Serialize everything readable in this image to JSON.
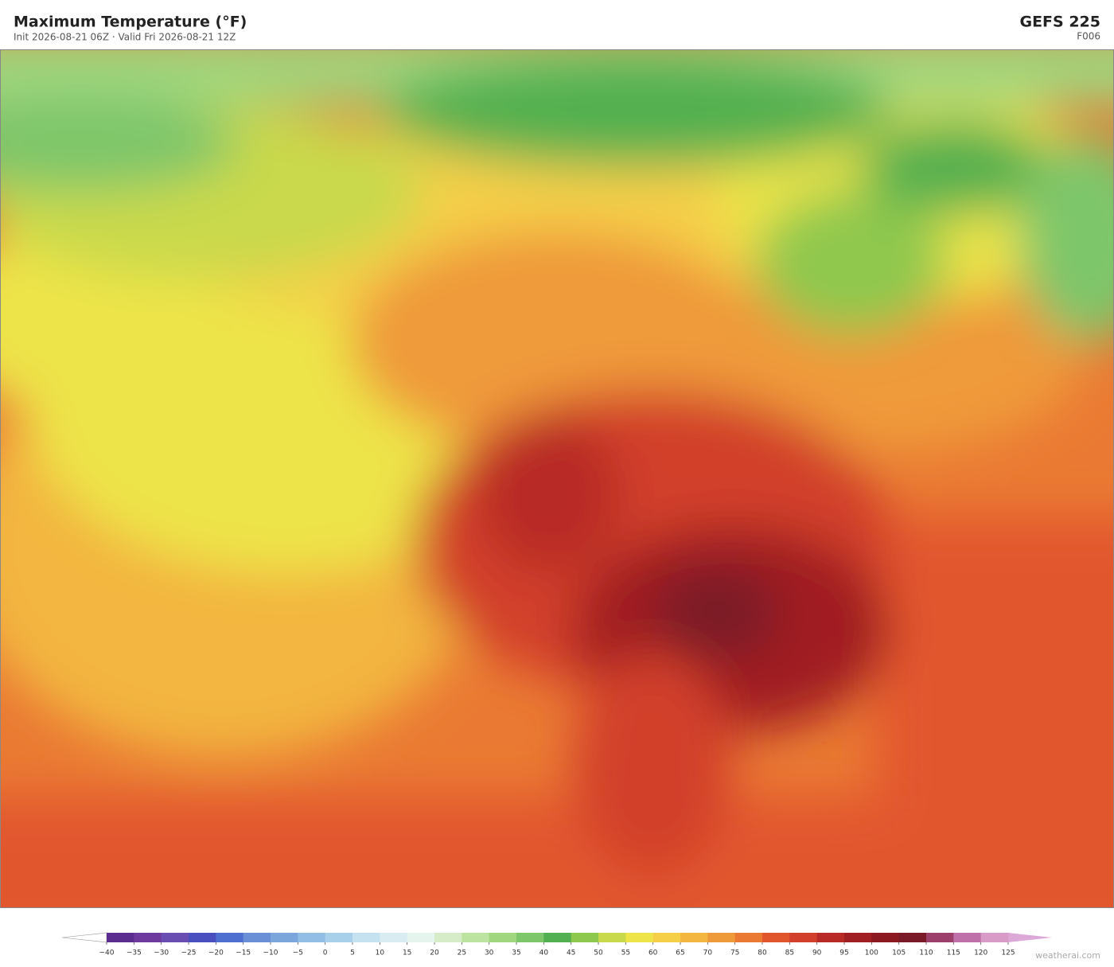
{
  "header": {
    "title": "Maximum Temperature  (°F)",
    "subtitle": "Init 2026-08-21 06Z   ·   Valid Fri 2026-08-21 12Z",
    "model": "GEFS  225",
    "forecast_hour": "F006"
  },
  "colorbar": {
    "ticks": [
      {
        "value": -40,
        "label": "−40"
      },
      {
        "value": -35,
        "label": "−35"
      },
      {
        "value": -30,
        "label": "−30"
      },
      {
        "value": -25,
        "label": "−25"
      },
      {
        "value": -20,
        "label": "−20"
      },
      {
        "value": -15,
        "label": "−15"
      },
      {
        "value": -10,
        "label": "−10"
      },
      {
        "value": -5,
        "label": "−5"
      },
      0,
      5,
      10,
      15,
      20,
      25,
      30,
      35,
      40,
      45,
      50,
      55,
      60,
      65,
      70,
      75,
      80,
      85,
      90,
      95,
      100,
      105,
      110,
      115,
      120,
      125
    ],
    "colors": [
      "#5b2d8e",
      "#6e3a9e",
      "#6a4db0",
      "#4a4fc0",
      "#4f6fd0",
      "#6a8fd6",
      "#7aa6dc",
      "#92bde4",
      "#a9d0ea",
      "#c4e2ef",
      "#d8ecf2",
      "#e6f4ee",
      "#d6ecc8",
      "#bde3a0",
      "#9fd67e",
      "#7ec66a",
      "#52b050",
      "#8fc84e",
      "#c9d94c",
      "#ede44a",
      "#f5cf48",
      "#f3b640",
      "#ef9a3a",
      "#ea7a33",
      "#e2562d",
      "#d23f2a",
      "#b82a25",
      "#a01f22",
      "#8c1820",
      "#7a1a28",
      "#9c3f6a",
      "#c070a8",
      "#d89bc8"
    ],
    "under_color": "#ffffff",
    "over_color": "#dca8d8"
  },
  "footer": {
    "credit": "weatherai.com"
  }
}
